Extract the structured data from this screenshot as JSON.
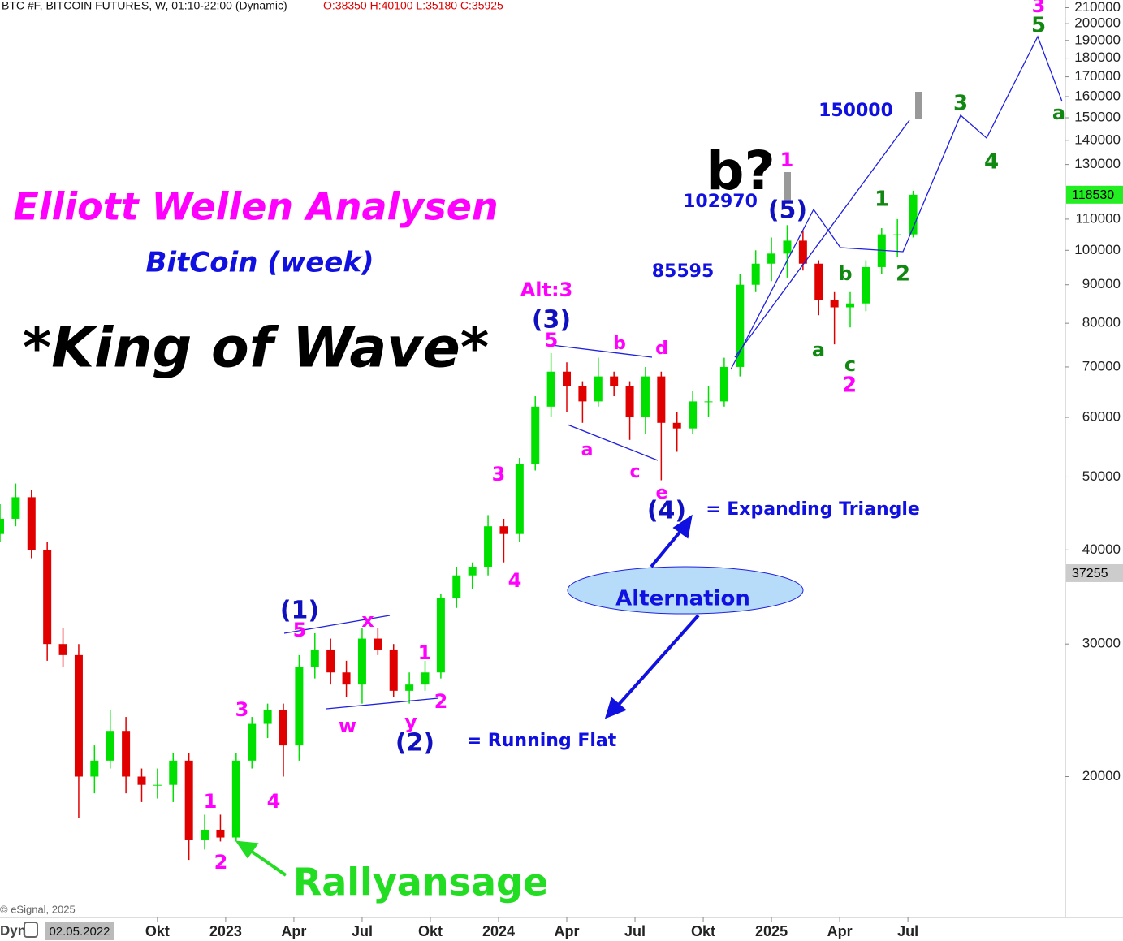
{
  "header": {
    "title": "BTC #F, BITCOIN FUTURES, W, 01:10-22:00 (Dynamic)",
    "ohlc": "O:38350 H:40100 L:35180 C:35925"
  },
  "footer": {
    "credit": "© eSignal, 2025",
    "mode": "Dyn",
    "cursor_date": "02.05.2022"
  },
  "chart_data": {
    "type": "candlestick",
    "log_scale": true,
    "up_color": "#00e000",
    "down_color": "#e00000",
    "x": [
      -8,
      -5,
      -2,
      1,
      4,
      7,
      10,
      13,
      16,
      19,
      22,
      25,
      28,
      31,
      34,
      37,
      40,
      43,
      46,
      49,
      52,
      55,
      58,
      61,
      64,
      67,
      70,
      73,
      76,
      79,
      82,
      85,
      88,
      91,
      94,
      97,
      100,
      103,
      106,
      109,
      112,
      115,
      118,
      121,
      124,
      127,
      130,
      133,
      136,
      139,
      142,
      145,
      148,
      151,
      154,
      157,
      160,
      163,
      166
    ],
    "open": [
      42000,
      44000,
      47000,
      40000,
      30000,
      29000,
      20000,
      21000,
      23000,
      20000,
      19500,
      19500,
      21000,
      16500,
      17000,
      16600,
      21000,
      23500,
      24500,
      22000,
      28000,
      29500,
      27500,
      26500,
      30500,
      29500,
      26000,
      26500,
      27500,
      34500,
      37000,
      38000,
      43000,
      42000,
      52000,
      62000,
      69000,
      66000,
      63000,
      68000,
      66000,
      60000,
      68000,
      59000,
      58000,
      63000,
      63000,
      70000,
      90000,
      96000,
      99000,
      103000,
      96000,
      86000,
      84000,
      85000,
      95000,
      105000,
      105000
    ],
    "high": [
      46000,
      49000,
      48000,
      41000,
      31500,
      30000,
      22000,
      24500,
      24000,
      20500,
      20500,
      21500,
      21500,
      17800,
      17800,
      21500,
      24000,
      25000,
      25000,
      29000,
      31000,
      30500,
      28500,
      31500,
      31500,
      30000,
      27500,
      28500,
      35000,
      38000,
      38500,
      44500,
      44000,
      53000,
      64000,
      73000,
      71000,
      67000,
      72000,
      69000,
      67000,
      70000,
      69000,
      61000,
      65000,
      66000,
      72000,
      93000,
      100000,
      104000,
      108000,
      106000,
      97000,
      88000,
      88000,
      97000,
      107000,
      110000,
      120000
    ],
    "low": [
      41000,
      43000,
      39000,
      28500,
      28000,
      17600,
      19000,
      20500,
      19000,
      18500,
      18700,
      18500,
      15500,
      16000,
      16400,
      16400,
      20500,
      22500,
      20000,
      21000,
      27000,
      26500,
      25500,
      25000,
      29000,
      25500,
      25000,
      26000,
      27000,
      33500,
      35500,
      37000,
      38500,
      41000,
      51000,
      60000,
      61000,
      59000,
      62000,
      64000,
      56000,
      57000,
      49500,
      54000,
      57000,
      60000,
      62000,
      68000,
      88000,
      91000,
      92000,
      94000,
      82000,
      75000,
      79000,
      83000,
      93000,
      98000,
      104000
    ],
    "close": [
      44000,
      47000,
      40000,
      30000,
      29000,
      20000,
      21000,
      23000,
      20000,
      19500,
      19500,
      21000,
      16500,
      17000,
      16600,
      21000,
      23500,
      24500,
      22000,
      28000,
      29500,
      27500,
      26500,
      30500,
      29500,
      26000,
      26500,
      27500,
      34500,
      37000,
      38000,
      43000,
      42000,
      52000,
      62000,
      69000,
      66000,
      63000,
      68000,
      66000,
      60000,
      68000,
      59000,
      58000,
      63000,
      63000,
      70000,
      90000,
      96000,
      99000,
      103000,
      96000,
      86000,
      84000,
      85000,
      95000,
      105000,
      105000,
      118530
    ],
    "xlim": [
      -8,
      195
    ],
    "ylim": [
      13000,
      215000
    ],
    "xticks": [
      {
        "value": 22,
        "label": "Okt"
      },
      {
        "value": 35,
        "label": "2023"
      },
      {
        "value": 48,
        "label": "Apr"
      },
      {
        "value": 61,
        "label": "Jul"
      },
      {
        "value": 74,
        "label": "Okt"
      },
      {
        "value": 87,
        "label": "2024"
      },
      {
        "value": 100,
        "label": "Apr"
      },
      {
        "value": 113,
        "label": "Jul"
      },
      {
        "value": 126,
        "label": "Okt"
      },
      {
        "value": 139,
        "label": "2025"
      },
      {
        "value": 152,
        "label": "Apr"
      },
      {
        "value": 165,
        "label": "Jul"
      }
    ],
    "yticks": [
      20000,
      30000,
      40000,
      50000,
      60000,
      70000,
      80000,
      90000,
      100000,
      110000,
      130000,
      140000,
      150000,
      160000,
      170000,
      180000,
      190000,
      200000,
      210000
    ],
    "last_price": 118530,
    "cursor_price": 37255
  },
  "annotations": [
    {
      "text": "Elliott Wellen Analysen",
      "color": "#ff00ff"
    },
    {
      "text": "BitCoin (week)",
      "color": "#1010e0"
    },
    {
      "text": "*King of Wave*",
      "color": "#000000"
    },
    {
      "text": "Rallyansage",
      "color": "#22dd22"
    },
    {
      "text": "= Running Flat",
      "color": "#1010e0"
    },
    {
      "text": "= Expanding Triangle",
      "color": "#1010e0"
    },
    {
      "text": "Alternation",
      "color": "#1010e0"
    },
    {
      "text": "150000",
      "color": "#1010e0"
    },
    {
      "text": "102970",
      "color": "#1010e0"
    },
    {
      "text": "85595",
      "color": "#1010e0"
    },
    {
      "text": "b?",
      "color": "#000000"
    },
    {
      "text": "1",
      "color": "#ff00ff"
    },
    {
      "text": "2",
      "color": "#ff00ff"
    },
    {
      "text": "3",
      "color": "#ff00ff"
    },
    {
      "text": "4",
      "color": "#ff00ff"
    },
    {
      "text": "5",
      "color": "#ff00ff"
    },
    {
      "text": "w",
      "color": "#ff00ff"
    },
    {
      "text": "x",
      "color": "#ff00ff"
    },
    {
      "text": "y",
      "color": "#ff00ff"
    },
    {
      "text": "1",
      "color": "#ff00ff"
    },
    {
      "text": "2",
      "color": "#ff00ff"
    },
    {
      "text": "3",
      "color": "#ff00ff"
    },
    {
      "text": "4",
      "color": "#ff00ff"
    },
    {
      "text": "5",
      "color": "#ff00ff"
    },
    {
      "text": "a",
      "color": "#ff00ff"
    },
    {
      "text": "b",
      "color": "#ff00ff"
    },
    {
      "text": "c",
      "color": "#ff00ff"
    },
    {
      "text": "d",
      "color": "#ff00ff"
    },
    {
      "text": "e",
      "color": "#ff00ff"
    },
    {
      "text": "Alt:3",
      "color": "#ff00ff"
    },
    {
      "text": "1",
      "color": "#ff00ff"
    },
    {
      "text": "2",
      "color": "#ff00ff"
    },
    {
      "text": "3",
      "color": "#ff00ff"
    },
    {
      "text": "(1)",
      "color": "#1010c0"
    },
    {
      "text": "(2)",
      "color": "#1010c0"
    },
    {
      "text": "(3)",
      "color": "#1010c0"
    },
    {
      "text": "(4)",
      "color": "#1010c0"
    },
    {
      "text": "(5)",
      "color": "#1010c0"
    },
    {
      "text": "a",
      "color": "#118811"
    },
    {
      "text": "b",
      "color": "#118811"
    },
    {
      "text": "c",
      "color": "#118811"
    },
    {
      "text": "1",
      "color": "#118811"
    },
    {
      "text": "2",
      "color": "#118811"
    },
    {
      "text": "3",
      "color": "#118811"
    },
    {
      "text": "4",
      "color": "#118811"
    },
    {
      "text": "5",
      "color": "#118811"
    },
    {
      "text": "a",
      "color": "#118811"
    }
  ]
}
